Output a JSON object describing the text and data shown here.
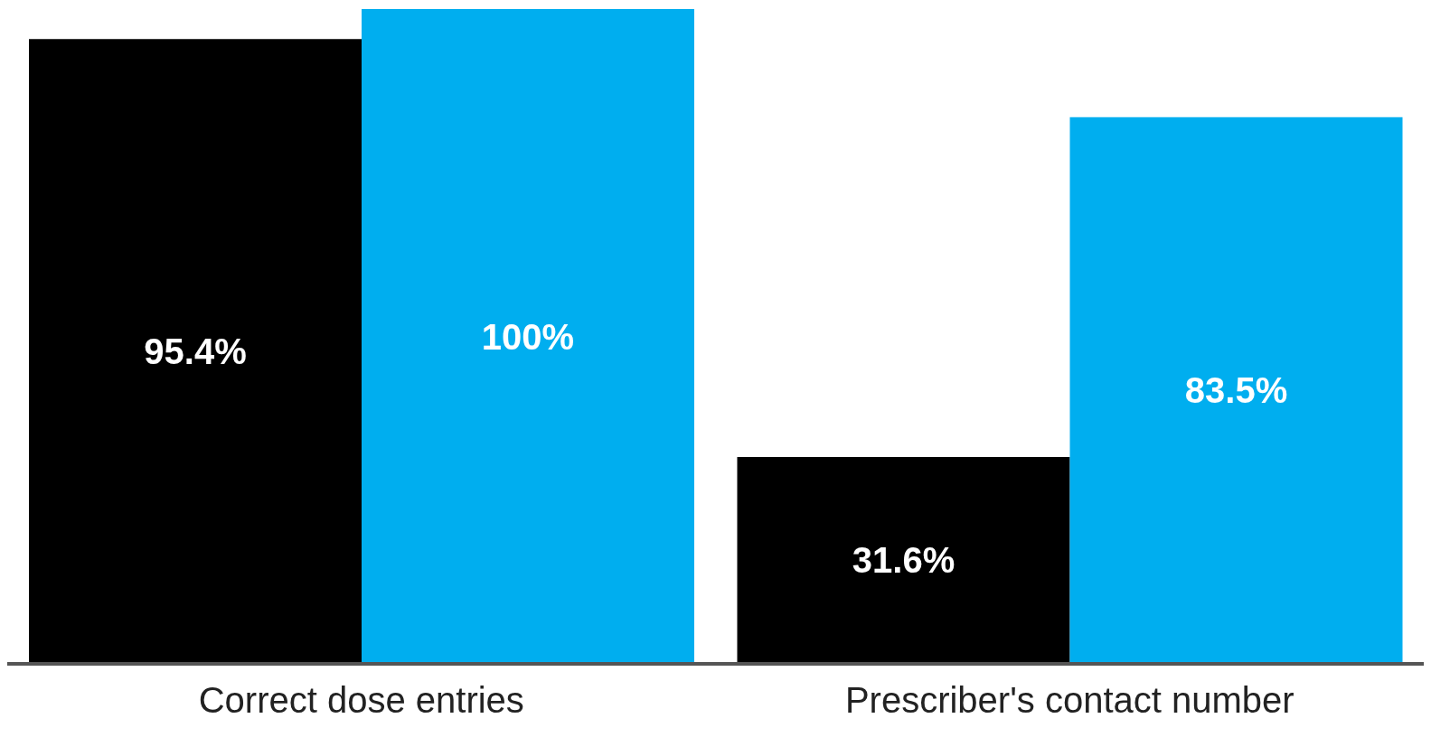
{
  "chart_data": {
    "type": "bar",
    "categories": [
      "Correct dose entries",
      "Prescriber's contact number"
    ],
    "series": [
      {
        "color": "#000000",
        "values": [
          95.4,
          31.6
        ],
        "value_labels": [
          "95.4%",
          "31.6%"
        ]
      },
      {
        "color": "#00aeef",
        "values": [
          100,
          83.5
        ],
        "value_labels": [
          "100%",
          "83.5%"
        ]
      }
    ],
    "grid": false,
    "legend": false
  }
}
